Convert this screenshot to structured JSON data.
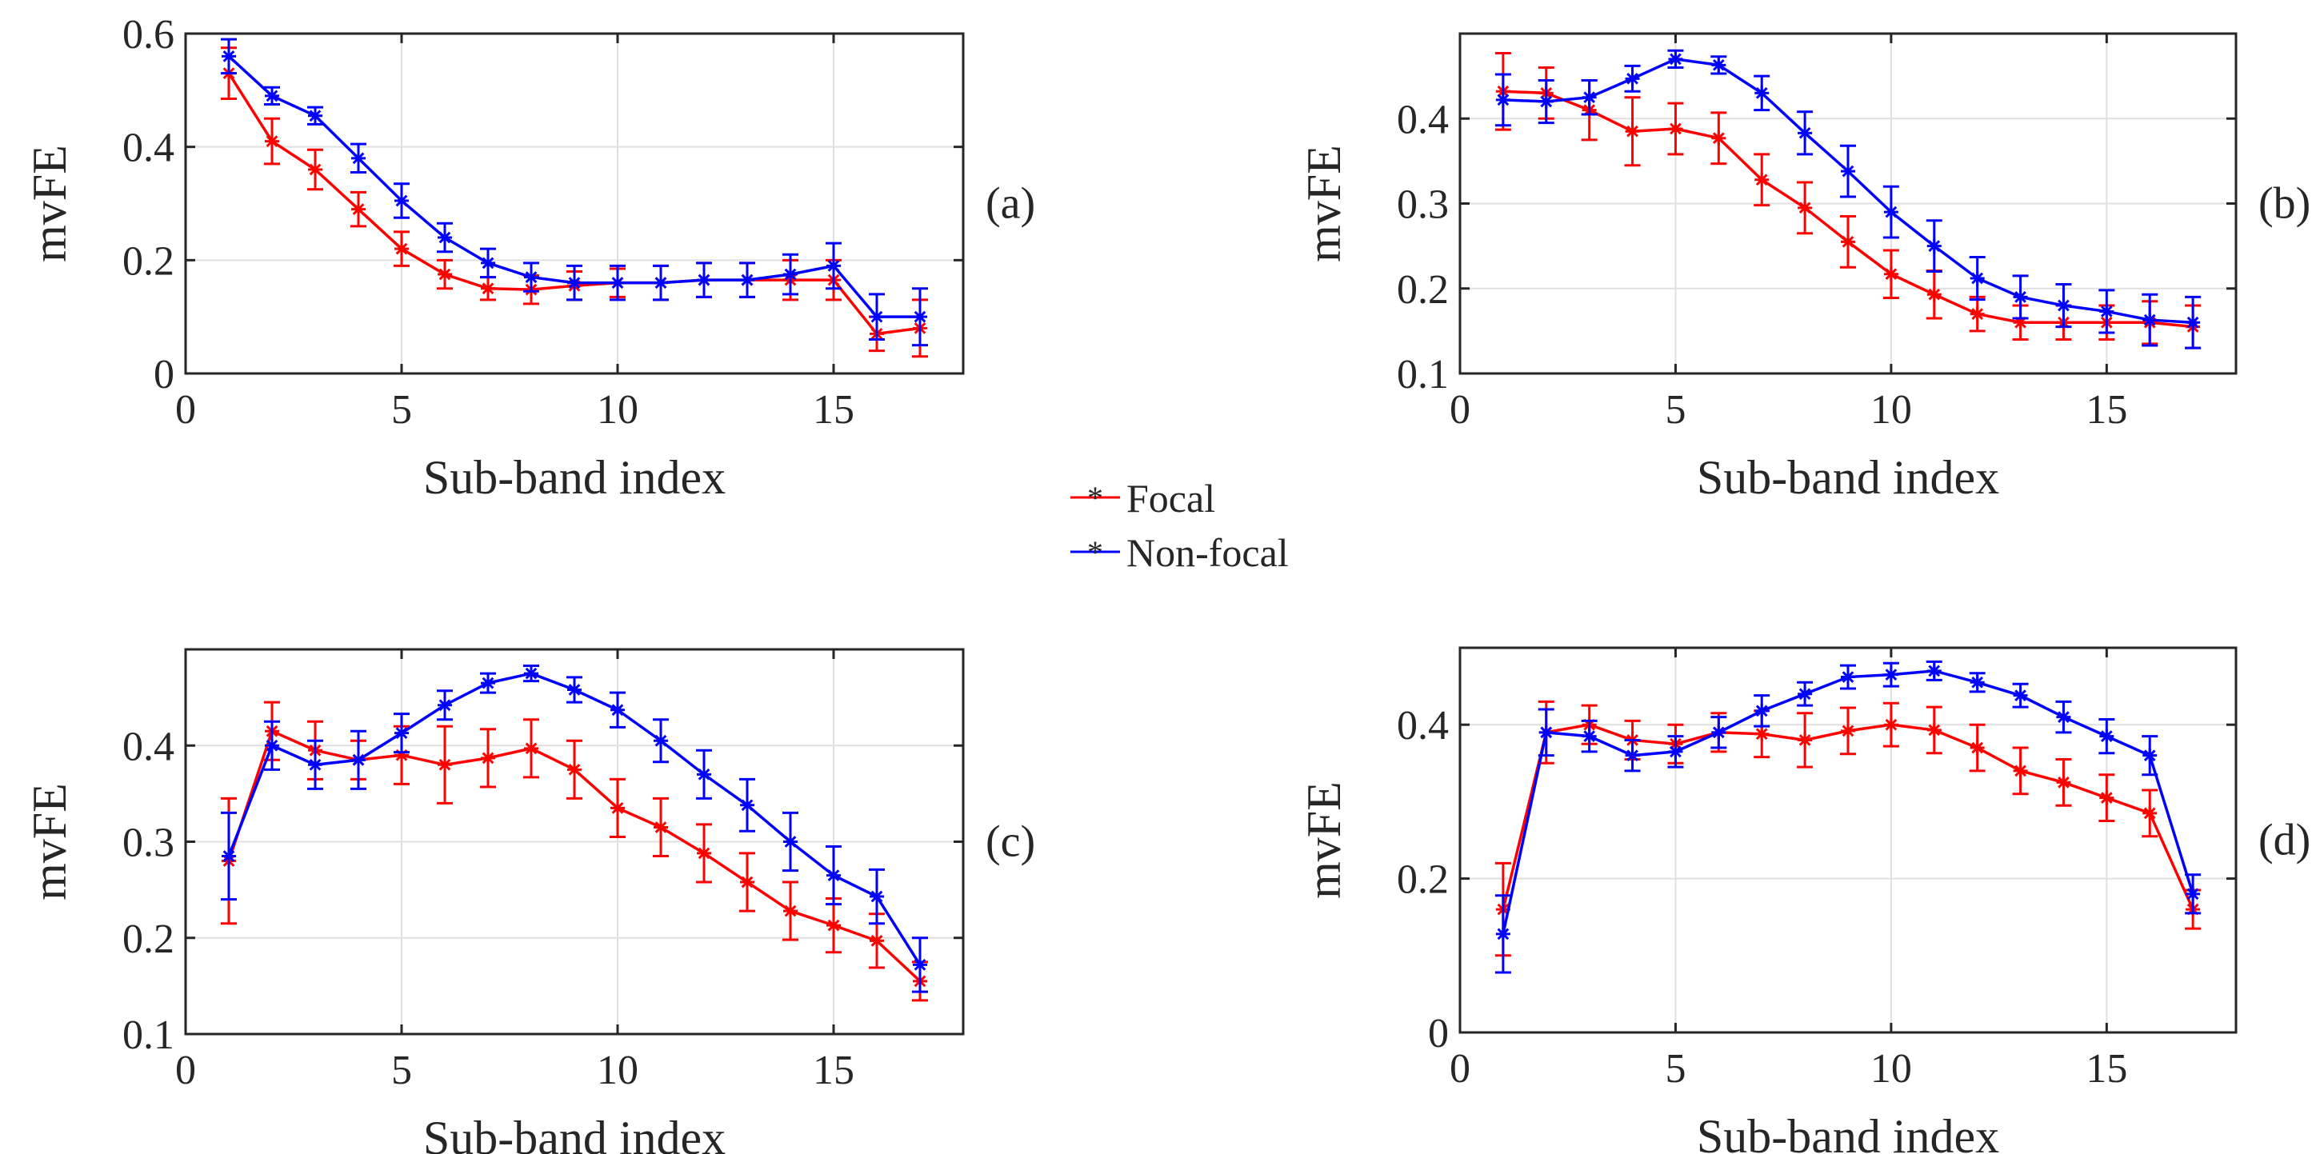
{
  "colors": {
    "focal": "#ff0000",
    "nonfocal": "#0000ff",
    "grid": "#dfdfdf",
    "axis": "#262626"
  },
  "legend": {
    "focal": "Focal",
    "nonfocal": "Non-focal"
  },
  "chart_data": [
    {
      "type": "line",
      "panel": "(a)",
      "xlabel": "Sub-band index",
      "ylabel": "mvFE",
      "xlim": [
        0,
        18
      ],
      "ylim": [
        0,
        0.6
      ],
      "xticks": [
        0,
        5,
        10,
        15
      ],
      "xtick_labels": [
        "0",
        "5",
        "10",
        "15"
      ],
      "yticks": [
        0,
        0.2,
        0.4,
        0.6
      ],
      "ytick_labels": [
        "0",
        "0.2",
        "0.4",
        "0.6"
      ],
      "x": [
        1,
        2,
        3,
        4,
        5,
        6,
        7,
        8,
        9,
        10,
        11,
        12,
        13,
        14,
        15,
        16,
        17
      ],
      "series": [
        {
          "name": "Focal",
          "values": [
            0.53,
            0.41,
            0.36,
            0.29,
            0.22,
            0.175,
            0.15,
            0.148,
            0.155,
            0.16,
            0.16,
            0.165,
            0.165,
            0.165,
            0.165,
            0.07,
            0.08
          ],
          "errors": [
            0.045,
            0.04,
            0.035,
            0.03,
            0.03,
            0.025,
            0.02,
            0.025,
            0.025,
            0.025,
            0.03,
            0.03,
            0.03,
            0.035,
            0.035,
            0.03,
            0.05
          ]
        },
        {
          "name": "Non-focal",
          "values": [
            0.56,
            0.49,
            0.455,
            0.38,
            0.305,
            0.24,
            0.195,
            0.17,
            0.16,
            0.16,
            0.16,
            0.165,
            0.165,
            0.175,
            0.19,
            0.1,
            0.1
          ],
          "errors": [
            0.03,
            0.015,
            0.015,
            0.025,
            0.03,
            0.025,
            0.025,
            0.025,
            0.03,
            0.03,
            0.03,
            0.03,
            0.03,
            0.035,
            0.04,
            0.04,
            0.05
          ]
        }
      ]
    },
    {
      "type": "line",
      "panel": "(b)",
      "xlabel": "Sub-band index",
      "ylabel": "mvFE",
      "xlim": [
        0,
        18
      ],
      "ylim": [
        0.1,
        0.5
      ],
      "xticks": [
        0,
        5,
        10,
        15
      ],
      "xtick_labels": [
        "0",
        "5",
        "10",
        "15"
      ],
      "yticks": [
        0.1,
        0.2,
        0.3,
        0.4
      ],
      "ytick_labels": [
        "0.1",
        "0.2",
        "0.3",
        "0.4"
      ],
      "x": [
        1,
        2,
        3,
        4,
        5,
        6,
        7,
        8,
        9,
        10,
        11,
        12,
        13,
        14,
        15,
        16,
        17
      ],
      "series": [
        {
          "name": "Focal",
          "values": [
            0.432,
            0.43,
            0.41,
            0.385,
            0.388,
            0.377,
            0.328,
            0.295,
            0.255,
            0.217,
            0.193,
            0.17,
            0.16,
            0.16,
            0.16,
            0.16,
            0.155
          ],
          "errors": [
            0.045,
            0.03,
            0.035,
            0.04,
            0.03,
            0.03,
            0.03,
            0.03,
            0.03,
            0.028,
            0.028,
            0.02,
            0.02,
            0.02,
            0.02,
            0.025,
            0.025
          ]
        },
        {
          "name": "Non-focal",
          "values": [
            0.422,
            0.42,
            0.425,
            0.447,
            0.47,
            0.463,
            0.43,
            0.383,
            0.338,
            0.29,
            0.25,
            0.212,
            0.19,
            0.18,
            0.173,
            0.163,
            0.16
          ],
          "errors": [
            0.03,
            0.025,
            0.02,
            0.015,
            0.01,
            0.01,
            0.02,
            0.025,
            0.03,
            0.03,
            0.03,
            0.025,
            0.025,
            0.025,
            0.025,
            0.03,
            0.03
          ]
        }
      ]
    },
    {
      "type": "line",
      "panel": "(c)",
      "xlabel": "Sub-band index",
      "ylabel": "mvFE",
      "xlim": [
        0,
        18
      ],
      "ylim": [
        0.1,
        0.5
      ],
      "xticks": [
        0,
        5,
        10,
        15
      ],
      "xtick_labels": [
        "0",
        "5",
        "10",
        "15"
      ],
      "yticks": [
        0.1,
        0.2,
        0.3,
        0.4
      ],
      "ytick_labels": [
        "0.1",
        "0.2",
        "0.3",
        "0.4"
      ],
      "x": [
        1,
        2,
        3,
        4,
        5,
        6,
        7,
        8,
        9,
        10,
        11,
        12,
        13,
        14,
        15,
        16,
        17
      ],
      "series": [
        {
          "name": "Focal",
          "values": [
            0.28,
            0.415,
            0.395,
            0.385,
            0.39,
            0.38,
            0.387,
            0.397,
            0.375,
            0.335,
            0.315,
            0.288,
            0.258,
            0.228,
            0.213,
            0.197,
            0.155
          ],
          "errors": [
            0.065,
            0.03,
            0.03,
            0.02,
            0.03,
            0.04,
            0.03,
            0.03,
            0.03,
            0.03,
            0.03,
            0.03,
            0.03,
            0.03,
            0.028,
            0.028,
            0.02
          ]
        },
        {
          "name": "Non-focal",
          "values": [
            0.285,
            0.4,
            0.38,
            0.385,
            0.413,
            0.442,
            0.465,
            0.475,
            0.458,
            0.437,
            0.405,
            0.37,
            0.338,
            0.3,
            0.265,
            0.243,
            0.172
          ],
          "errors": [
            0.045,
            0.025,
            0.025,
            0.03,
            0.02,
            0.015,
            0.01,
            0.008,
            0.013,
            0.018,
            0.022,
            0.025,
            0.027,
            0.03,
            0.03,
            0.028,
            0.028
          ]
        }
      ]
    },
    {
      "type": "line",
      "panel": "(d)",
      "xlabel": "Sub-band index",
      "ylabel": "mvFE",
      "xlim": [
        0,
        18
      ],
      "ylim": [
        0,
        0.5
      ],
      "xticks": [
        0,
        5,
        10,
        15
      ],
      "xtick_labels": [
        "0",
        "5",
        "10",
        "15"
      ],
      "yticks": [
        0,
        0.2,
        0.4
      ],
      "ytick_labels": [
        "0",
        "0.2",
        "0.4"
      ],
      "x": [
        1,
        2,
        3,
        4,
        5,
        6,
        7,
        8,
        9,
        10,
        11,
        12,
        13,
        14,
        15,
        16,
        17
      ],
      "series": [
        {
          "name": "Focal",
          "values": [
            0.16,
            0.39,
            0.4,
            0.38,
            0.375,
            0.39,
            0.388,
            0.38,
            0.392,
            0.4,
            0.393,
            0.37,
            0.34,
            0.325,
            0.305,
            0.285,
            0.16
          ],
          "errors": [
            0.06,
            0.04,
            0.025,
            0.025,
            0.025,
            0.025,
            0.03,
            0.035,
            0.03,
            0.028,
            0.03,
            0.03,
            0.03,
            0.03,
            0.03,
            0.03,
            0.025
          ]
        },
        {
          "name": "Non-focal",
          "values": [
            0.128,
            0.39,
            0.385,
            0.36,
            0.365,
            0.39,
            0.418,
            0.44,
            0.462,
            0.465,
            0.47,
            0.455,
            0.438,
            0.41,
            0.385,
            0.36,
            0.18
          ],
          "errors": [
            0.05,
            0.03,
            0.02,
            0.02,
            0.02,
            0.02,
            0.02,
            0.015,
            0.015,
            0.015,
            0.012,
            0.012,
            0.015,
            0.02,
            0.022,
            0.025,
            0.025
          ]
        }
      ]
    }
  ]
}
